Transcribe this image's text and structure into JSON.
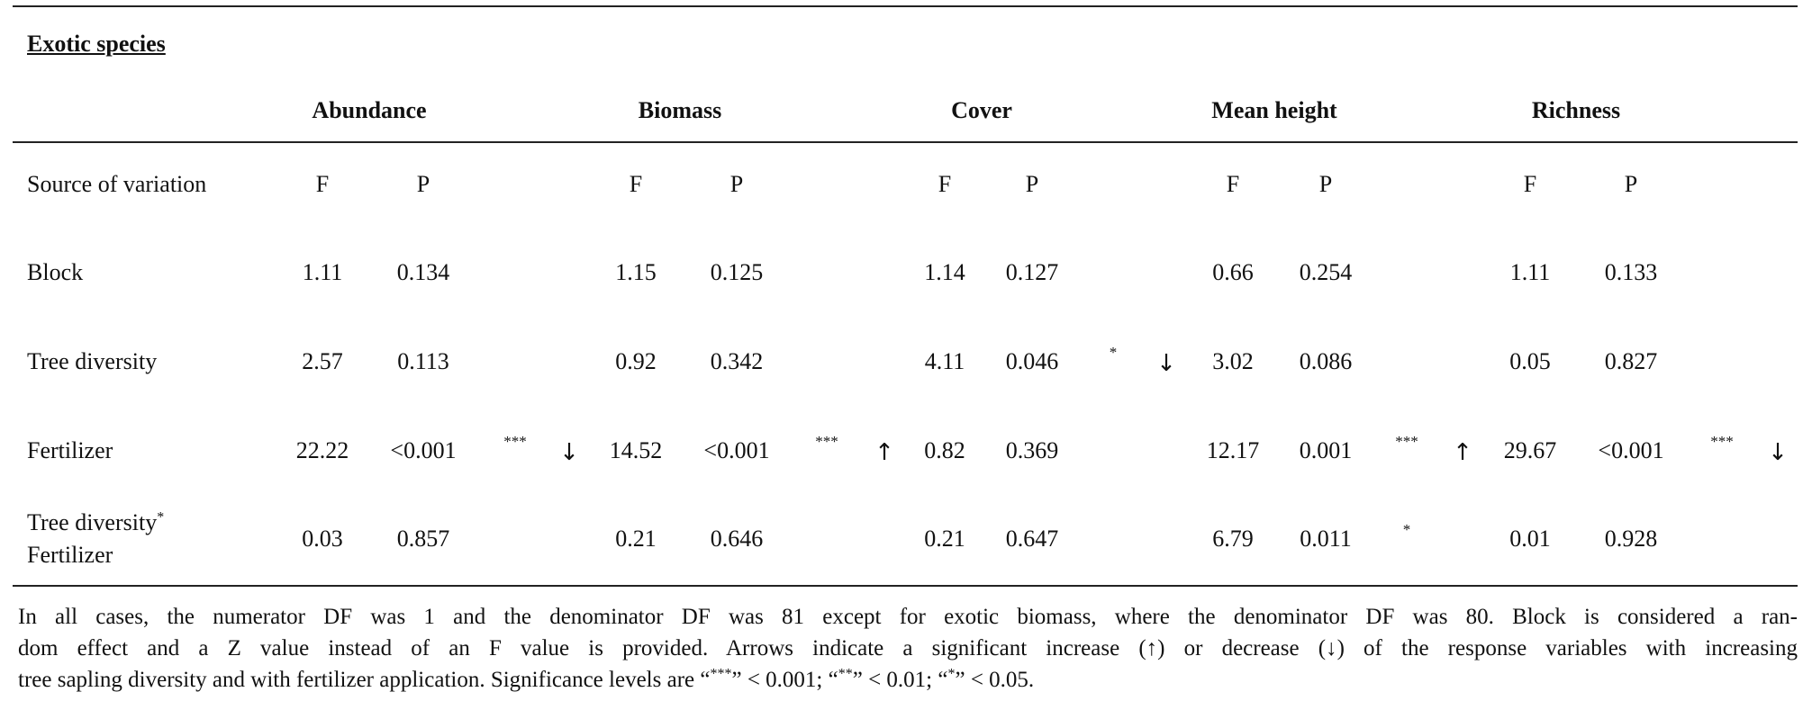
{
  "table": {
    "section_title": "Exotic species",
    "groups": [
      "Abundance",
      "Biomass",
      "Cover",
      "Mean height",
      "Richness"
    ],
    "subheader": {
      "source_label": "Source of variation",
      "f_label": "F",
      "p_label": "P"
    },
    "rows": [
      {
        "label": "Block",
        "label_line2": "",
        "cells": [
          {
            "f": "1.11",
            "p": "0.134",
            "sig": "",
            "arrow": ""
          },
          {
            "f": "1.15",
            "p": "0.125",
            "sig": "",
            "arrow": ""
          },
          {
            "f": "1.14",
            "p": "0.127",
            "sig": "",
            "arrow": ""
          },
          {
            "f": "0.66",
            "p": "0.254",
            "sig": "",
            "arrow": ""
          },
          {
            "f": "1.11",
            "p": "0.133",
            "sig": "",
            "arrow": ""
          }
        ]
      },
      {
        "label": "Tree diversity",
        "label_line2": "",
        "cells": [
          {
            "f": "2.57",
            "p": "0.113",
            "sig": "",
            "arrow": ""
          },
          {
            "f": "0.92",
            "p": "0.342",
            "sig": "",
            "arrow": ""
          },
          {
            "f": "4.11",
            "p": "0.046",
            "sig": "*",
            "arrow": "↓"
          },
          {
            "f": "3.02",
            "p": "0.086",
            "sig": "",
            "arrow": ""
          },
          {
            "f": "0.05",
            "p": "0.827",
            "sig": "",
            "arrow": ""
          }
        ]
      },
      {
        "label": "Fertilizer",
        "label_line2": "",
        "cells": [
          {
            "f": "22.22",
            "p": "<0.001",
            "sig": "***",
            "arrow": "↓"
          },
          {
            "f": "14.52",
            "p": "<0.001",
            "sig": "***",
            "arrow": "↑"
          },
          {
            "f": "0.82",
            "p": "0.369",
            "sig": "",
            "arrow": ""
          },
          {
            "f": "12.17",
            "p": "0.001",
            "sig": "***",
            "arrow": "↑"
          },
          {
            "f": "29.67",
            "p": "<0.001",
            "sig": "***",
            "arrow": "↓"
          }
        ]
      },
      {
        "label": "Tree diversity",
        "label_sup": "*",
        "label_line2": "Fertilizer",
        "cells": [
          {
            "f": "0.03",
            "p": "0.857",
            "sig": "",
            "arrow": ""
          },
          {
            "f": "0.21",
            "p": "0.646",
            "sig": "",
            "arrow": ""
          },
          {
            "f": "0.21",
            "p": "0.647",
            "sig": "",
            "arrow": ""
          },
          {
            "f": "6.79",
            "p": "0.011",
            "sig": "*",
            "arrow": ""
          },
          {
            "f": "0.01",
            "p": "0.928",
            "sig": "",
            "arrow": ""
          }
        ]
      }
    ],
    "footnote": {
      "line1": "In all cases, the numerator DF was 1 and the denominator DF was 81 except for exotic biomass, where the denominator DF was 80. Block is considered a ran-",
      "line2": "dom effect and a Z value instead of an F value is provided. Arrows indicate a significant increase (↑) or decrease (↓) of the response variables with increasing",
      "line3_pre": "tree sapling diversity and with fertilizer application. Significance levels are “",
      "sig3": "***",
      "mid1": "” < 0.001; “",
      "sig2": "**",
      "mid2": "” < 0.01; “",
      "sig1": "*",
      "end": "” < 0.05."
    }
  }
}
